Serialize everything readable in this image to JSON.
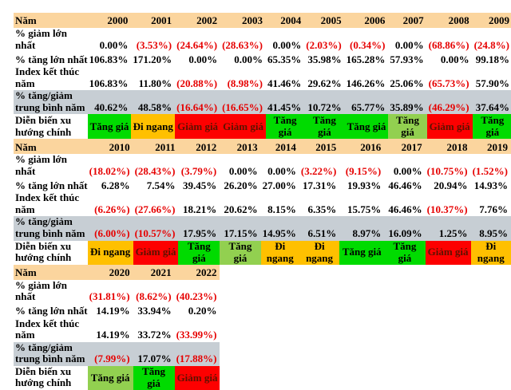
{
  "colors": {
    "header_row_bg": "#fbd59e",
    "avg_row_bg": "#c7ced4",
    "negative_value_text": "#e60000",
    "down_cell_text": "#5c1200",
    "trend": {
      "up": "#00db00",
      "up_light": "#92d050",
      "sideways": "#ffc000",
      "down": "#fd0000"
    }
  },
  "row_labels": {
    "year": "Năm",
    "max_decline": "% giảm lớn\nnhất",
    "max_gain": "% tăng lớn nhất",
    "year_end_index": "Index kết thúc\nnăm",
    "avg_change": "% tăng/giảm\ntrung bình năm",
    "main_trend": "Diễn biến xu\nhướng chính"
  },
  "blocks": [
    {
      "years": [
        "2000",
        "2001",
        "2002",
        "2003",
        "2004",
        "2005",
        "2006",
        "2007",
        "2008",
        "2009"
      ],
      "max_decline": [
        "0.00%",
        "(3.53%)",
        "(24.64%)",
        "(28.63%)",
        "0.00%",
        "(2.03%)",
        "(0.34%)",
        "0.00%",
        "(68.86%)",
        "(24.8%)"
      ],
      "max_gain": [
        "106.83%",
        "171.20%",
        "0.00%",
        "0.00%",
        "65.35%",
        "35.98%",
        "165.28%",
        "57.93%",
        "0.00%",
        "99.18%"
      ],
      "year_end_index": [
        "106.83%",
        "11.80%",
        "(20.88%)",
        "(8.98%)",
        "41.46%",
        "29.62%",
        "146.26%",
        "25.06%",
        "(65.73%)",
        "57.90%"
      ],
      "avg_change": [
        "40.62%",
        "48.58%",
        "(16.64%)",
        "(16.65%)",
        "41.45%",
        "10.72%",
        "65.77%",
        "35.89%",
        "(46.29%)",
        "37.64%"
      ],
      "main_trend": [
        {
          "label": "Tăng giá",
          "color": "up"
        },
        {
          "label": "Đi ngang",
          "color": "sideways"
        },
        {
          "label": "Giảm giá",
          "color": "down"
        },
        {
          "label": "Giảm giá",
          "color": "down"
        },
        {
          "label": "Tăng giá",
          "color": "up"
        },
        {
          "label": "Tăng giá",
          "color": "up"
        },
        {
          "label": "Tăng giá",
          "color": "up"
        },
        {
          "label": "Tăng\ngiá",
          "color": "up_light"
        },
        {
          "label": "Giảm giá",
          "color": "down"
        },
        {
          "label": "Tăng giá",
          "color": "up"
        }
      ]
    },
    {
      "years": [
        "2010",
        "2011",
        "2012",
        "2013",
        "2014",
        "2015",
        "2016",
        "2017",
        "2018",
        "2019"
      ],
      "max_decline": [
        "(18.02%)",
        "(28.43%)",
        "(3.79%)",
        "0.00%",
        "0.00%",
        "(3.22%)",
        "(9.15%)",
        "0.00%",
        "(10.75%)",
        "(1.52%)"
      ],
      "max_gain": [
        "6.28%",
        "7.54%",
        "39.45%",
        "26.20%",
        "27.00%",
        "17.31%",
        "19.93%",
        "46.46%",
        "20.94%",
        "14.93%"
      ],
      "year_end_index": [
        "(6.26%)",
        "(27.66%)",
        "18.21%",
        "20.62%",
        "8.15%",
        "6.35%",
        "15.75%",
        "46.46%",
        "(10.37%)",
        "7.76%"
      ],
      "avg_change": [
        "(6.00%)",
        "(10.57%)",
        "17.95%",
        "17.15%",
        "14.95%",
        "6.51%",
        "8.97%",
        "16.09%",
        "1.25%",
        "8.95%"
      ],
      "main_trend": [
        {
          "label": "Đi ngang",
          "color": "sideways"
        },
        {
          "label": "Giảm giá",
          "color": "down"
        },
        {
          "label": "Tăng giá",
          "color": "up"
        },
        {
          "label": "Tăng giá",
          "color": "up_light"
        },
        {
          "label": "Đi\nngang",
          "color": "sideways"
        },
        {
          "label": "Đi\nngang",
          "color": "sideways"
        },
        {
          "label": "Tăng giá",
          "color": "up"
        },
        {
          "label": "Tăng\ngiá",
          "color": "up"
        },
        {
          "label": "Giảm giá",
          "color": "down"
        },
        {
          "label": "Đi\nngang",
          "color": "sideways"
        }
      ]
    },
    {
      "years": [
        "2020",
        "2021",
        "2022"
      ],
      "max_decline": [
        "(31.81%)",
        "(8.62%)",
        "(40.23%)"
      ],
      "max_gain": [
        "14.19%",
        "33.94%",
        "0.20%"
      ],
      "year_end_index": [
        "14.19%",
        "33.72%",
        "(33.99%)"
      ],
      "avg_change": [
        "(7.99%)",
        "17.07%",
        "(17.88%)"
      ],
      "main_trend": [
        {
          "label": "Tăng giá",
          "color": "up_light"
        },
        {
          "label": "Tăng giá",
          "color": "up"
        },
        {
          "label": "Giảm giá",
          "color": "down"
        }
      ]
    }
  ]
}
